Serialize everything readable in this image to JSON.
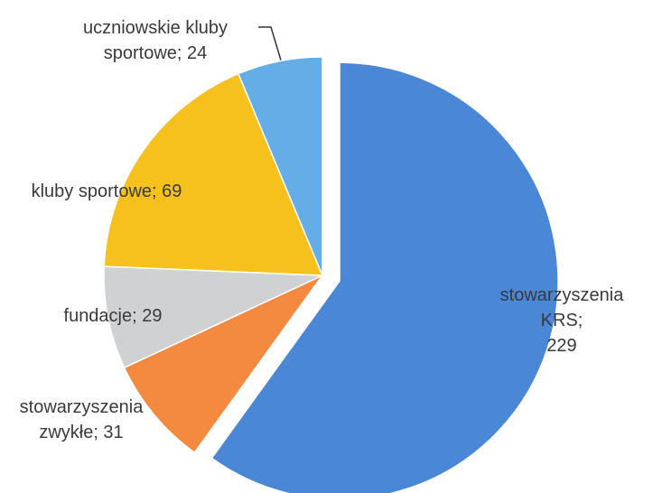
{
  "chart_data": {
    "type": "pie",
    "labels": [
      "stowarzyszenia KRS;\n229",
      "stowarzyszenia\nzwykłe; 31",
      "fundacje; 29",
      "kluby sportowe; 69",
      "uczniowskie kluby\nsportowe; 24"
    ],
    "values": [
      229,
      31,
      29,
      69,
      24
    ],
    "colors": [
      "#4a87d6",
      "#f38a40",
      "#d0d1d3",
      "#f6c11c",
      "#64ade6"
    ]
  }
}
